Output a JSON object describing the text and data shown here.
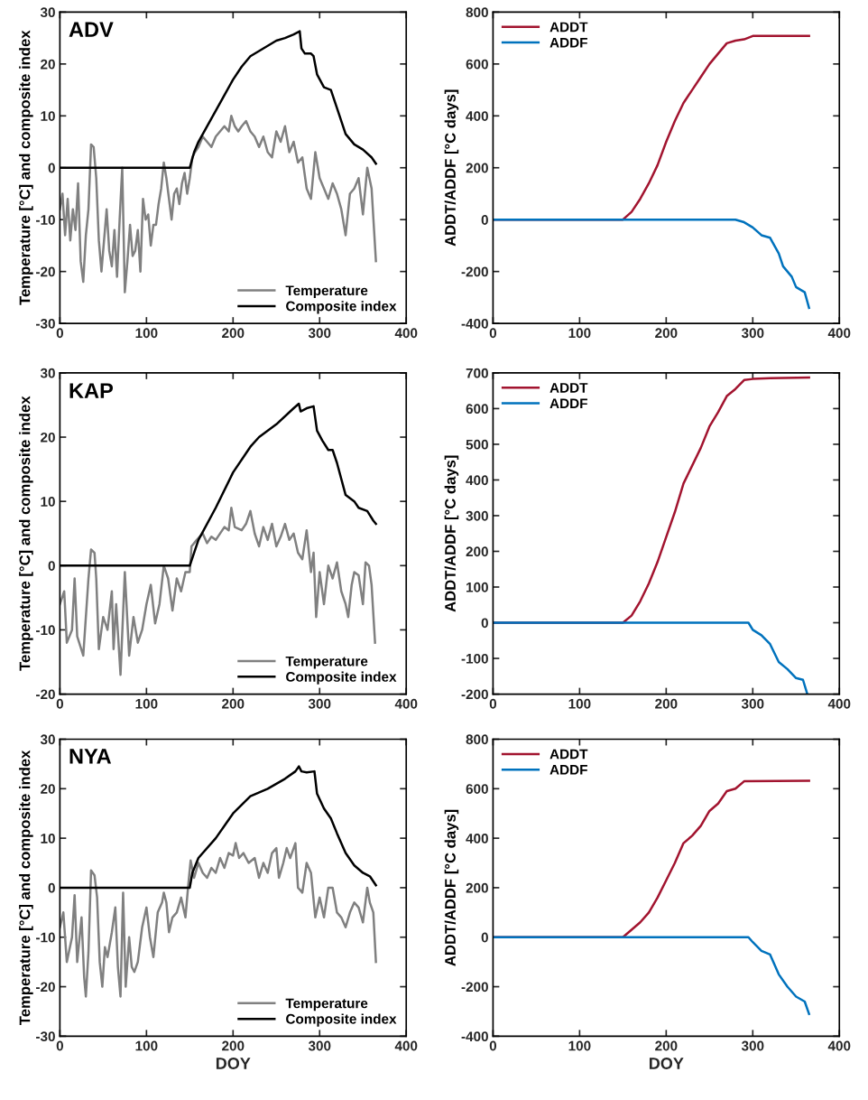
{
  "chart_data": [
    {
      "type": "line",
      "title": "ADV",
      "ylabel": "Temperature [°C] and composite index",
      "xlim": [
        0,
        400
      ],
      "xticks": [
        0,
        100,
        200,
        300,
        400
      ],
      "ylim": [
        -30,
        30
      ],
      "yticks": [
        -30,
        -20,
        -10,
        0,
        10,
        20,
        30
      ],
      "legend": "bottom right",
      "grid": false,
      "series": [
        {
          "name": "Temperature",
          "color": "#808080",
          "x": [
            0,
            3,
            6,
            9,
            12,
            15,
            18,
            21,
            24,
            27,
            30,
            33,
            36,
            39,
            42,
            45,
            48,
            51,
            54,
            57,
            60,
            63,
            66,
            69,
            72,
            75,
            78,
            81,
            84,
            87,
            90,
            93,
            96,
            99,
            102,
            105,
            108,
            111,
            114,
            117,
            120,
            123,
            126,
            129,
            132,
            135,
            138,
            141,
            144,
            147,
            150,
            153,
            156,
            160,
            165,
            170,
            175,
            180,
            185,
            190,
            195,
            198,
            202,
            206,
            210,
            215,
            220,
            225,
            230,
            235,
            240,
            245,
            250,
            255,
            260,
            265,
            270,
            275,
            280,
            285,
            290,
            295,
            300,
            305,
            310,
            315,
            320,
            325,
            330,
            335,
            340,
            345,
            350,
            355,
            360,
            365
          ],
          "values": [
            -8,
            -5,
            -13,
            -6,
            -14,
            -8,
            -12,
            -3,
            -18,
            -22,
            -13,
            -8,
            4.5,
            4,
            -2,
            -14,
            -20,
            -14,
            -8,
            -16,
            -19,
            -12,
            -21,
            -10,
            0,
            -24,
            -18,
            -11,
            -17,
            -16,
            -12,
            -20,
            -6,
            -10,
            -9,
            -15,
            -11,
            -11,
            -7,
            -4,
            1,
            -2,
            -6,
            -10,
            -5,
            -4,
            -7,
            -3,
            -1,
            -5,
            -2,
            2,
            3,
            4,
            6,
            5,
            4,
            6,
            7,
            8,
            7,
            10,
            8,
            7,
            8,
            9,
            7,
            6,
            4,
            6,
            3,
            2,
            7,
            5,
            8,
            3,
            5,
            1,
            2,
            -4,
            -6,
            3,
            -2,
            -4,
            -6,
            -3,
            -5,
            -8,
            -13,
            -5,
            -4,
            -2,
            -9,
            0,
            -4,
            -18
          ]
        },
        {
          "name": "Composite index",
          "color": "#000000",
          "x": [
            0,
            150,
            155,
            160,
            170,
            180,
            190,
            200,
            210,
            220,
            230,
            240,
            250,
            260,
            270,
            277,
            279,
            283,
            290,
            293,
            297,
            305,
            313,
            320,
            330,
            340,
            350,
            360,
            365
          ],
          "values": [
            0,
            0,
            3,
            5,
            8,
            11,
            14,
            17,
            19.5,
            21.5,
            22.5,
            23.5,
            24.5,
            25,
            25.7,
            26.3,
            23,
            22,
            22,
            21.5,
            18,
            15.5,
            15,
            11.5,
            6.5,
            4.5,
            3.5,
            2,
            0.8
          ]
        }
      ]
    },
    {
      "type": "line",
      "ylabel": "ADDT/ADDF [°C days]",
      "xlim": [
        0,
        400
      ],
      "xticks": [
        0,
        100,
        200,
        300,
        400
      ],
      "ylim": [
        -400,
        800
      ],
      "yticks": [
        -400,
        -200,
        0,
        200,
        400,
        600,
        800
      ],
      "legend": "top left",
      "grid": false,
      "series": [
        {
          "name": "ADDT",
          "color": "#a2142f",
          "x": [
            0,
            150,
            160,
            170,
            180,
            190,
            200,
            210,
            220,
            230,
            240,
            250,
            255,
            260,
            270,
            280,
            290,
            300,
            365
          ],
          "values": [
            0,
            0,
            30,
            80,
            140,
            210,
            300,
            380,
            450,
            500,
            550,
            600,
            620,
            640,
            680,
            690,
            695,
            708,
            708
          ]
        },
        {
          "name": "ADDF",
          "color": "#0072bd",
          "x": [
            0,
            280,
            290,
            300,
            310,
            320,
            330,
            335,
            345,
            350,
            360,
            365
          ],
          "values": [
            0,
            0,
            -10,
            -30,
            -60,
            -70,
            -130,
            -180,
            -220,
            -260,
            -280,
            -340
          ]
        }
      ]
    },
    {
      "type": "line",
      "title": "KAP",
      "ylabel": "Temperature [°C] and composite index",
      "xlim": [
        0,
        400
      ],
      "xticks": [
        0,
        100,
        200,
        300,
        400
      ],
      "ylim": [
        -20,
        30
      ],
      "yticks": [
        -20,
        -10,
        0,
        10,
        20,
        30
      ],
      "legend": "bottom right",
      "grid": false,
      "series": [
        {
          "name": "Temperature",
          "color": "#808080",
          "x": [
            0,
            5,
            8,
            14,
            17,
            20,
            27,
            33,
            36,
            40,
            42,
            45,
            50,
            55,
            60,
            62,
            65,
            70,
            75,
            80,
            85,
            90,
            95,
            100,
            105,
            110,
            115,
            120,
            125,
            130,
            135,
            140,
            145,
            150,
            152,
            158,
            165,
            170,
            175,
            180,
            190,
            195,
            198,
            202,
            210,
            215,
            220,
            225,
            230,
            235,
            240,
            245,
            250,
            255,
            260,
            265,
            270,
            275,
            280,
            285,
            290,
            293,
            296,
            300,
            305,
            310,
            315,
            320,
            325,
            330,
            333,
            337,
            340,
            345,
            350,
            353,
            357,
            360,
            364
          ],
          "values": [
            -6,
            -4,
            -12,
            -10,
            -2,
            -11,
            -14,
            -2,
            2.5,
            2,
            -2,
            -13,
            -8,
            -10,
            -4,
            -13,
            -6,
            -17,
            -1,
            -14,
            -8,
            -12,
            -10,
            -6,
            -3,
            -9,
            -6,
            0,
            -2,
            -7,
            -2,
            -4,
            -1,
            -1,
            3,
            4,
            5,
            3.5,
            4.5,
            4,
            6,
            5.5,
            9,
            6,
            5.5,
            6.5,
            8.5,
            5,
            3,
            6,
            4,
            6.5,
            3,
            4.5,
            6.5,
            4,
            5,
            2,
            1,
            5.5,
            -1,
            2,
            -8,
            -1,
            -6,
            0,
            -2,
            0.5,
            -4,
            -6,
            -8,
            -3,
            -1,
            -1.5,
            -6,
            0.5,
            0,
            -3,
            -12
          ]
        },
        {
          "name": "Composite index",
          "color": "#000000",
          "x": [
            0,
            150,
            160,
            180,
            200,
            220,
            230,
            250,
            270,
            276,
            278,
            285,
            293,
            297,
            303,
            310,
            315,
            320,
            330,
            340,
            345,
            355,
            362,
            365
          ],
          "values": [
            0,
            0,
            4,
            9,
            14.5,
            18.5,
            20,
            22,
            24.5,
            25.2,
            24,
            24.5,
            24.8,
            21,
            19.5,
            18,
            18,
            16,
            11,
            10,
            9,
            8.5,
            7,
            6.5
          ]
        }
      ]
    },
    {
      "type": "line",
      "ylabel": "ADDT/ADDF [°C days]",
      "xlim": [
        0,
        400
      ],
      "xticks": [
        0,
        100,
        200,
        300,
        400
      ],
      "ylim": [
        -200,
        700
      ],
      "yticks": [
        -200,
        -100,
        0,
        100,
        200,
        300,
        400,
        500,
        600,
        700
      ],
      "legend": "top left",
      "grid": false,
      "series": [
        {
          "name": "ADDT",
          "color": "#a2142f",
          "x": [
            0,
            150,
            160,
            170,
            180,
            190,
            200,
            210,
            220,
            230,
            240,
            250,
            260,
            270,
            280,
            290,
            300,
            320,
            365
          ],
          "values": [
            0,
            0,
            20,
            60,
            110,
            170,
            240,
            310,
            390,
            440,
            490,
            550,
            590,
            635,
            655,
            680,
            683,
            685,
            687
          ]
        },
        {
          "name": "ADDF",
          "color": "#0072bd",
          "x": [
            0,
            295,
            300,
            310,
            320,
            330,
            340,
            350,
            358,
            363
          ],
          "values": [
            0,
            0,
            -20,
            -35,
            -60,
            -110,
            -130,
            -155,
            -160,
            -200
          ]
        }
      ]
    },
    {
      "type": "line",
      "title": "NYA",
      "xlabel": "DOY",
      "ylabel": "Temperature [°C] and composite index",
      "xlim": [
        0,
        400
      ],
      "xticks": [
        0,
        100,
        200,
        300,
        400
      ],
      "ylim": [
        -30,
        30
      ],
      "yticks": [
        -30,
        -20,
        -10,
        0,
        10,
        20,
        30
      ],
      "legend": "bottom right",
      "grid": false,
      "series": [
        {
          "name": "Temperature",
          "color": "#808080",
          "x": [
            0,
            4,
            8,
            14,
            17,
            20,
            25,
            28,
            30,
            33,
            36,
            40,
            43,
            46,
            49,
            52,
            55,
            60,
            64,
            67,
            70,
            73,
            76,
            80,
            83,
            86,
            90,
            95,
            100,
            104,
            108,
            113,
            118,
            120,
            123,
            126,
            130,
            135,
            140,
            145,
            148,
            151,
            155,
            160,
            165,
            170,
            175,
            180,
            185,
            190,
            195,
            200,
            203,
            207,
            212,
            218,
            225,
            230,
            235,
            240,
            245,
            250,
            253,
            258,
            262,
            266,
            272,
            275,
            280,
            285,
            290,
            295,
            300,
            305,
            310,
            315,
            320,
            325,
            330,
            335,
            340,
            345,
            350,
            355,
            358,
            362,
            365
          ],
          "values": [
            -8,
            -5,
            -15,
            -10,
            -1.5,
            -15,
            -6,
            -18,
            -22,
            -13,
            3.5,
            2.5,
            -2,
            -15,
            -20,
            -12,
            -14,
            -9,
            -4,
            -16,
            -22,
            -1,
            -20,
            -10,
            -16,
            -17,
            -15,
            -8,
            -4,
            -10,
            -14,
            -5,
            -3,
            -1,
            -3,
            -9,
            -6,
            -5,
            -2,
            -6,
            0,
            5.5,
            2,
            5,
            3,
            2,
            4,
            3,
            6,
            4,
            7,
            6.5,
            9,
            6,
            7,
            5,
            6,
            2,
            5,
            3,
            7,
            8,
            2,
            5,
            8,
            6,
            9,
            0,
            -1,
            5,
            3,
            -6,
            -2,
            -6,
            0,
            0,
            -5,
            -6,
            -8,
            -5,
            -3,
            -4,
            -7,
            0,
            -3,
            -5,
            -15
          ]
        },
        {
          "name": "Composite index",
          "color": "#000000",
          "x": [
            0,
            150,
            153,
            160,
            180,
            200,
            220,
            240,
            260,
            272,
            276,
            279,
            285,
            294,
            297,
            305,
            313,
            320,
            330,
            340,
            350,
            358,
            365
          ],
          "values": [
            0,
            0,
            3,
            6,
            10,
            15,
            18.5,
            20,
            22,
            23.5,
            24.5,
            23.5,
            23.3,
            23.5,
            19,
            16,
            14,
            11,
            7,
            4.5,
            3,
            2.3,
            0.5
          ]
        }
      ]
    },
    {
      "type": "line",
      "xlabel": "DOY",
      "ylabel": "ADDT/ADDF [°C days]",
      "xlim": [
        0,
        400
      ],
      "xticks": [
        0,
        100,
        200,
        300,
        400
      ],
      "ylim": [
        -400,
        800
      ],
      "yticks": [
        -400,
        -200,
        0,
        200,
        400,
        600,
        800
      ],
      "legend": "top left",
      "grid": false,
      "series": [
        {
          "name": "ADDT",
          "color": "#a2142f",
          "x": [
            0,
            150,
            160,
            170,
            180,
            190,
            200,
            210,
            220,
            230,
            240,
            250,
            260,
            270,
            280,
            290,
            365
          ],
          "values": [
            0,
            0,
            30,
            60,
            100,
            160,
            230,
            300,
            380,
            410,
            450,
            510,
            540,
            590,
            600,
            630,
            632
          ]
        },
        {
          "name": "ADDF",
          "color": "#0072bd",
          "x": [
            0,
            295,
            300,
            310,
            320,
            330,
            340,
            350,
            360,
            365
          ],
          "values": [
            0,
            0,
            -20,
            -55,
            -70,
            -150,
            -200,
            -240,
            -260,
            -310
          ]
        }
      ]
    }
  ]
}
